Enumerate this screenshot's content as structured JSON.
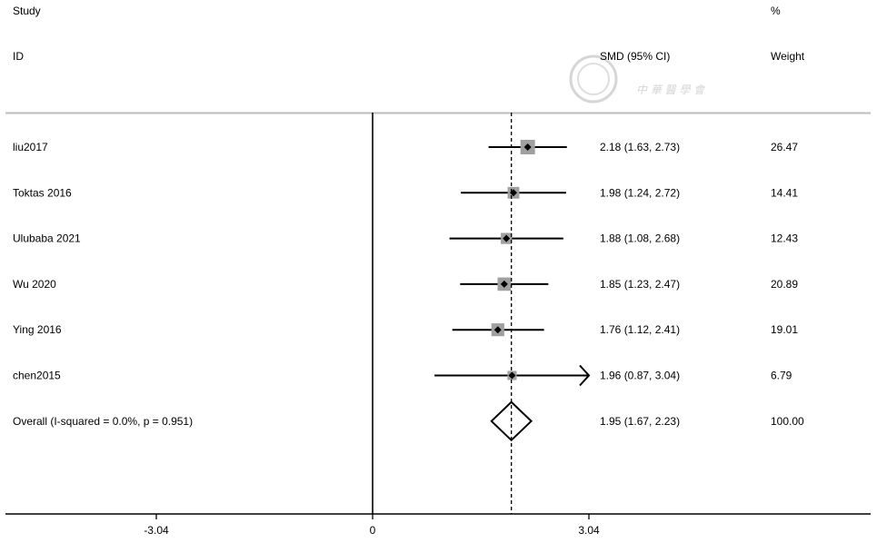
{
  "header": {
    "col_study_top": "Study",
    "col_study_bottom": "ID",
    "col_effect": "SMD (95% CI)",
    "col_weight_top": "%",
    "col_weight_bottom": "Weight"
  },
  "watermark": {
    "text": "中華醫學會"
  },
  "colors": {
    "marker": "#a0a0a0",
    "line": "#000000",
    "rule": "#bdbdbd"
  },
  "chart_data": {
    "type": "forest",
    "measure": "SMD",
    "null_value": 0,
    "overall_line": 1.95,
    "xlim": [
      -4.1,
      7.2
    ],
    "xticks": [
      -3.04,
      0,
      3.04
    ],
    "xtick_labels": [
      "-3.04",
      "0",
      "3.04"
    ],
    "studies": [
      {
        "study": "liu2017",
        "est": 2.18,
        "lo": 1.63,
        "hi": 2.73,
        "label": "2.18 (1.63, 2.73)",
        "weight": "26.47"
      },
      {
        "study": "Toktas 2016",
        "est": 1.98,
        "lo": 1.24,
        "hi": 2.72,
        "label": "1.98 (1.24, 2.72)",
        "weight": "14.41"
      },
      {
        "study": "Ulubaba 2021",
        "est": 1.88,
        "lo": 1.08,
        "hi": 2.68,
        "label": "1.88 (1.08, 2.68)",
        "weight": "12.43"
      },
      {
        "study": "Wu 2020",
        "est": 1.85,
        "lo": 1.23,
        "hi": 2.47,
        "label": "1.85 (1.23, 2.47)",
        "weight": "20.89"
      },
      {
        "study": "Ying 2016",
        "est": 1.76,
        "lo": 1.12,
        "hi": 2.41,
        "label": "1.76 (1.12, 2.41)",
        "weight": "19.01"
      },
      {
        "study": "chen2015",
        "est": 1.96,
        "lo": 0.87,
        "hi": 3.04,
        "label": "1.96 (0.87, 3.04)",
        "weight": "6.79",
        "arrow_right": true
      }
    ],
    "overall": {
      "study": "Overall  (I-squared = 0.0%, p = 0.951)",
      "est": 1.95,
      "lo": 1.67,
      "hi": 2.23,
      "label": "1.95 (1.67, 2.23)",
      "weight": "100.00"
    }
  }
}
